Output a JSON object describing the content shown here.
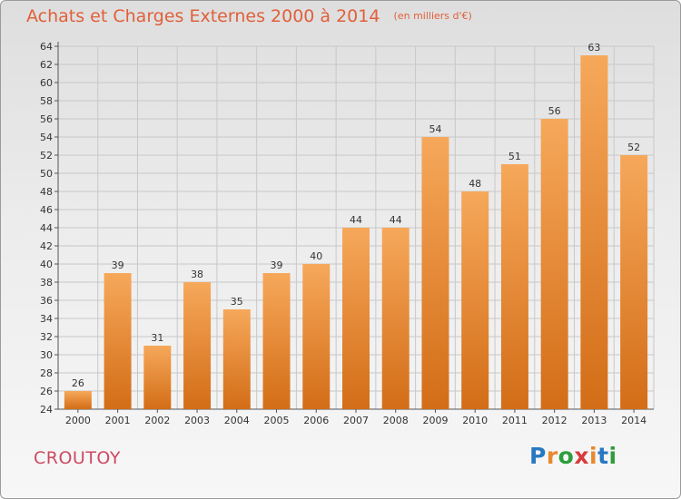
{
  "title": "Achats et Charges Externes 2000 à 2014",
  "unit": "(en milliers d'€)",
  "commune": "CROUTOY",
  "logo": {
    "letters": [
      "P",
      "r",
      "o",
      "x",
      "i",
      "t",
      "i"
    ],
    "colors": [
      "#2a78c2",
      "#e8892e",
      "#2d9d3e",
      "#d83a3a",
      "#e8892e",
      "#2a78c2",
      "#2d9d3e"
    ]
  },
  "colors": {
    "bar_light": "#f6a85a",
    "bar_dark": "#d36d17",
    "title": "#e0603a",
    "commune": "#cc4a62",
    "grid": "#c8c8c8"
  },
  "chart_data": {
    "type": "bar",
    "categories": [
      "2000",
      "2001",
      "2002",
      "2003",
      "2004",
      "2005",
      "2006",
      "2007",
      "2008",
      "2009",
      "2010",
      "2011",
      "2012",
      "2013",
      "2014"
    ],
    "values": [
      26,
      39,
      31,
      38,
      35,
      39,
      40,
      44,
      44,
      54,
      48,
      51,
      56,
      63,
      52
    ],
    "title": "Achats et Charges Externes 2000 à 2014",
    "ylim": [
      24,
      64
    ],
    "yticks": [
      24,
      26,
      28,
      30,
      32,
      34,
      36,
      38,
      40,
      42,
      44,
      46,
      48,
      50,
      52,
      54,
      56,
      58,
      60,
      62,
      64
    ],
    "grid": true,
    "data_labels": true
  }
}
